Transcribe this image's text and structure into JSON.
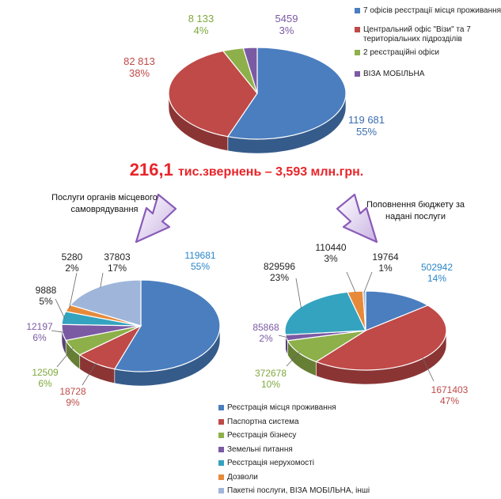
{
  "colors": {
    "blue": "#4a7ebf",
    "red": "#bf4a48",
    "green": "#8db04a",
    "purple": "#7b5aa4",
    "teal": "#34a3bf",
    "orange": "#e68a3a",
    "lightblue": "#9fb6da",
    "headline": "#e8252a",
    "arrow": "#8a5bb8"
  },
  "headline": {
    "amount": "216,1",
    "tail": "тис.звернень – 3,593 млн.грн."
  },
  "notes": {
    "left": "Послуги органів місцевого самоврядування",
    "right": "Поповнення бюджету за надані послуги"
  },
  "chart_data": [
    {
      "type": "pie",
      "title": "",
      "legend_position": "right",
      "categories": [
        "7 офісів реєстрації місця проживання",
        "Центральний офіс \"Візи\" та 7 територіальних підрозділів",
        "2 реєстраційні офіси",
        "ВІЗА МОБІЛЬНА"
      ],
      "values": [
        119681,
        82813,
        8133,
        5459
      ],
      "value_labels": [
        "119 681",
        "82 813",
        "8 133",
        "5459"
      ],
      "percent_labels": [
        "55%",
        "38%",
        "4%",
        "3%"
      ],
      "colors": [
        "#4a7ebf",
        "#bf4a48",
        "#8db04a",
        "#7b5aa4"
      ]
    },
    {
      "type": "pie",
      "title": "",
      "categories": [
        "Реєстрація місця проживання",
        "Паспортна система",
        "Реєстрація бізнесу",
        "Земельні питання",
        "Реєстрація нерухомості",
        "Дозволи",
        "Пакетні послуги, ВІЗА МОБІЛЬНА, інші"
      ],
      "values": [
        119681,
        18728,
        12509,
        12197,
        9888,
        5280,
        37803
      ],
      "value_labels": [
        "119681",
        "18728",
        "12509",
        "12197",
        "9888",
        "5280",
        "37803"
      ],
      "percent_labels": [
        "55%",
        "9%",
        "6%",
        "6%",
        "5%",
        "2%",
        "17%"
      ],
      "colors": [
        "#4a7ebf",
        "#bf4a48",
        "#8db04a",
        "#7b5aa4",
        "#34a3bf",
        "#e68a3a",
        "#9fb6da"
      ]
    },
    {
      "type": "pie",
      "title": "",
      "categories": [
        "Реєстрація місця проживання",
        "Паспортна система",
        "Реєстрація бізнесу",
        "Земельні питання",
        "Реєстрація нерухомості",
        "Дозволи",
        "Пакетні послуги, ВІЗА МОБІЛЬНА, інші"
      ],
      "values": [
        502942,
        1671403,
        372678,
        85868,
        829596,
        110440,
        19764
      ],
      "value_labels": [
        "502942",
        "1671403",
        "372678",
        "85868",
        "829596",
        "110440",
        "19764"
      ],
      "percent_labels": [
        "14%",
        "47%",
        "10%",
        "2%",
        "23%",
        "3%",
        "1%"
      ],
      "colors": [
        "#4a7ebf",
        "#bf4a48",
        "#8db04a",
        "#7b5aa4",
        "#34a3bf",
        "#e68a3a",
        "#9fb6da"
      ]
    }
  ],
  "bottom_legend": {
    "position": "bottom",
    "items": [
      {
        "label": "Реєстрація місця проживання",
        "color": "#4a7ebf"
      },
      {
        "label": "Паспортна система",
        "color": "#bf4a48"
      },
      {
        "label": "Реєстрація бізнесу",
        "color": "#8db04a"
      },
      {
        "label": "Земельні питання",
        "color": "#7b5aa4"
      },
      {
        "label": "Реєстрація нерухомості",
        "color": "#34a3bf"
      },
      {
        "label": "Дозволи",
        "color": "#e68a3a"
      },
      {
        "label": "Пакетні послуги, ВІЗА МОБІЛЬНА, інші",
        "color": "#9fb6da"
      }
    ]
  }
}
